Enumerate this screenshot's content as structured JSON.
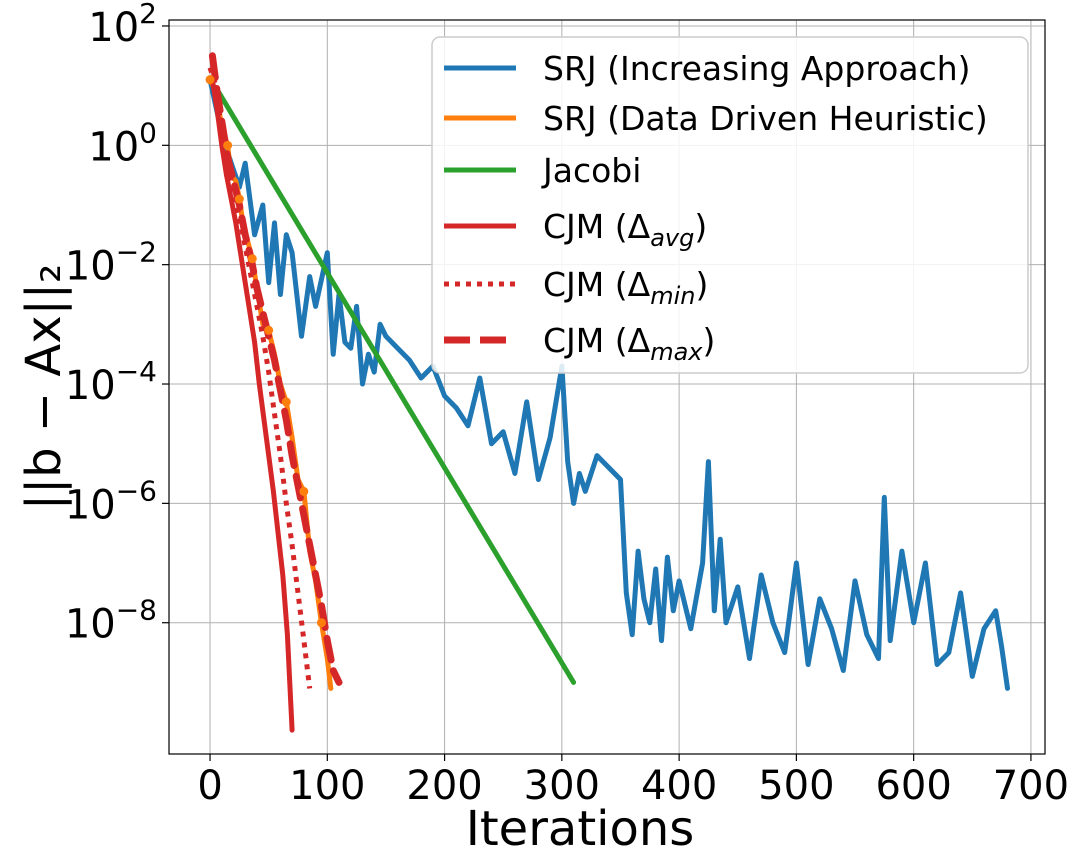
{
  "chart_data": {
    "type": "line",
    "xlabel": "Iterations",
    "ylabel": "||b − Ax||₂",
    "yscale": "log",
    "xlim": [
      -35,
      712
    ],
    "ylim_log10": [
      -10.2,
      2.1
    ],
    "grid": true,
    "legend_position": "upper-right",
    "x_ticks": [
      0,
      100,
      200,
      300,
      400,
      500,
      600,
      700
    ],
    "x_tick_labels": [
      "0",
      "100",
      "200",
      "300",
      "400",
      "500",
      "600",
      "700"
    ],
    "y_ticks_exp": [
      2,
      0,
      -2,
      -4,
      -6,
      -8
    ],
    "y_tick_labels": [
      {
        "base": "10",
        "exp": "2"
      },
      {
        "base": "10",
        "exp": "0"
      },
      {
        "base": "10",
        "exp": "−2"
      },
      {
        "base": "10",
        "exp": "−4"
      },
      {
        "base": "10",
        "exp": "−6"
      },
      {
        "base": "10",
        "exp": "−8"
      }
    ],
    "series": [
      {
        "name": "SRJ (Increasing Approach)",
        "label_main": "SRJ (Increasing Approach)",
        "label_sub": "",
        "label_tail": "",
        "color": "#1f77b4",
        "style": "solid",
        "width": 5,
        "x": [
          0,
          10,
          18,
          25,
          30,
          38,
          45,
          50,
          55,
          60,
          65,
          70,
          78,
          85,
          90,
          100,
          105,
          110,
          115,
          120,
          125,
          130,
          135,
          140,
          145,
          150,
          160,
          170,
          180,
          190,
          200,
          210,
          220,
          230,
          240,
          250,
          260,
          270,
          280,
          290,
          300,
          305,
          310,
          315,
          320,
          330,
          340,
          350,
          355,
          360,
          365,
          370,
          375,
          380,
          385,
          390,
          395,
          400,
          410,
          420,
          425,
          430,
          435,
          440,
          450,
          460,
          470,
          480,
          490,
          500,
          510,
          520,
          530,
          540,
          550,
          560,
          570,
          575,
          580,
          590,
          600,
          610,
          620,
          630,
          640,
          650,
          660,
          670,
          675,
          680
        ],
        "y_log10": [
          1.1,
          0.2,
          -0.3,
          -0.7,
          -0.3,
          -1.5,
          -1.0,
          -2.3,
          -1.3,
          -2.5,
          -1.5,
          -1.8,
          -3.2,
          -2.2,
          -2.7,
          -1.8,
          -3.5,
          -2.5,
          -3.3,
          -3.4,
          -2.7,
          -4.0,
          -3.5,
          -3.8,
          -3.0,
          -3.2,
          -3.4,
          -3.6,
          -3.9,
          -3.7,
          -4.2,
          -4.4,
          -4.7,
          -3.9,
          -5.0,
          -4.8,
          -5.5,
          -4.3,
          -5.6,
          -4.9,
          -3.7,
          -5.3,
          -6.0,
          -5.5,
          -5.8,
          -5.2,
          -5.4,
          -5.6,
          -7.5,
          -8.2,
          -6.8,
          -7.6,
          -8.0,
          -7.1,
          -8.3,
          -6.9,
          -7.8,
          -7.3,
          -8.1,
          -7.0,
          -5.3,
          -7.8,
          -6.6,
          -8.0,
          -7.4,
          -8.6,
          -7.2,
          -8.0,
          -8.5,
          -7.0,
          -8.7,
          -7.6,
          -8.1,
          -8.8,
          -7.3,
          -8.2,
          -8.6,
          -5.9,
          -8.3,
          -6.8,
          -8.0,
          -7.0,
          -8.7,
          -8.5,
          -7.5,
          -8.9,
          -8.1,
          -7.8,
          -8.4,
          -9.1
        ]
      },
      {
        "name": "SRJ (Data Driven Heuristic)",
        "label_main": "SRJ (Data Driven Heuristic)",
        "label_sub": "",
        "label_tail": "",
        "color": "#ff7f0e",
        "style": "solid",
        "width": 5,
        "x": [
          0,
          5,
          10,
          15,
          18,
          22,
          25,
          28,
          32,
          36,
          40,
          45,
          50,
          55,
          60,
          65,
          70,
          75,
          80,
          85,
          90,
          95,
          100,
          103
        ],
        "y_log10": [
          1.1,
          0.9,
          0.3,
          0.0,
          -0.5,
          -0.6,
          -0.9,
          -1.3,
          -1.6,
          -1.9,
          -2.4,
          -3.0,
          -3.1,
          -3.5,
          -4.0,
          -4.3,
          -4.9,
          -5.6,
          -5.8,
          -6.8,
          -7.3,
          -8.0,
          -8.6,
          -9.1
        ]
      },
      {
        "name": "Jacobi",
        "label_main": "Jacobi",
        "label_sub": "",
        "label_tail": "",
        "color": "#2ca02c",
        "style": "solid",
        "width": 5,
        "x": [
          7,
          310
        ],
        "y_log10": [
          0.9,
          -9.0
        ]
      },
      {
        "name": "CJM (Δavg)",
        "label_main": "CJM (Δ",
        "label_sub": "avg",
        "label_tail": ")",
        "color": "#d62728",
        "style": "solid",
        "width": 5,
        "x": [
          2,
          6,
          10,
          14,
          18,
          22,
          26,
          30,
          34,
          38,
          42,
          46,
          50,
          54,
          58,
          62,
          66,
          70
        ],
        "y_log10": [
          1.1,
          0.6,
          0.0,
          -0.5,
          -0.9,
          -1.3,
          -1.8,
          -2.3,
          -2.8,
          -3.3,
          -4.0,
          -4.6,
          -5.2,
          -5.8,
          -6.5,
          -7.2,
          -8.2,
          -9.8
        ]
      },
      {
        "name": "CJM (Δmin)",
        "label_main": "CJM (Δ",
        "label_sub": "min",
        "label_tail": ")",
        "color": "#d62728",
        "style": "dotted",
        "width": 5,
        "x": [
          0,
          5,
          10,
          15,
          20,
          25,
          30,
          35,
          40,
          45,
          50,
          55,
          60,
          65,
          70,
          75,
          80,
          85
        ],
        "y_log10": [
          1.3,
          1.0,
          0.2,
          -0.3,
          -0.8,
          -1.2,
          -1.7,
          -2.2,
          -2.7,
          -3.2,
          -3.8,
          -4.5,
          -5.2,
          -6.0,
          -6.7,
          -7.5,
          -8.3,
          -9.1
        ]
      },
      {
        "name": "CJM (Δmax)",
        "label_main": "CJM (Δ",
        "label_sub": "max",
        "label_tail": ")",
        "color": "#d62728",
        "style": "dashed",
        "width": 7,
        "x": [
          2,
          6,
          10,
          15,
          20,
          25,
          30,
          35,
          40,
          45,
          50,
          55,
          60,
          65,
          70,
          75,
          80,
          85,
          90,
          95,
          100,
          105,
          110
        ],
        "y_log10": [
          1.5,
          0.9,
          0.4,
          -0.2,
          -0.6,
          -1.0,
          -1.5,
          -1.9,
          -2.4,
          -2.8,
          -3.2,
          -3.6,
          -4.1,
          -4.6,
          -5.2,
          -5.7,
          -6.2,
          -6.7,
          -7.2,
          -7.7,
          -8.3,
          -8.8,
          -9.0
        ]
      }
    ]
  }
}
